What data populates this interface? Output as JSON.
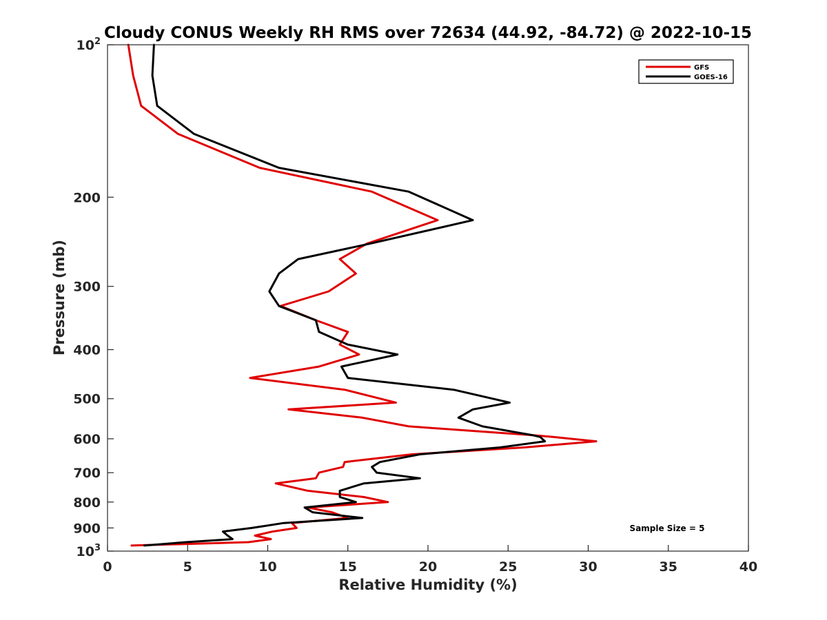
{
  "chart_data": {
    "type": "line",
    "title": "Cloudy CONUS Weekly RH RMS over 72634 (44.92, -84.72) @ 2022-10-15",
    "xlabel": "Relative Humidity (%)",
    "ylabel": "Pressure (mb)",
    "xlim": [
      0,
      40
    ],
    "ylim": [
      100,
      1000
    ],
    "y_scale": "log",
    "y_reversed": true,
    "xticks": [
      0,
      5,
      10,
      15,
      20,
      25,
      30,
      35,
      40
    ],
    "xtick_labels": [
      "0",
      "5",
      "10",
      "15",
      "20",
      "25",
      "30",
      "35",
      "40"
    ],
    "yticks": [
      100,
      200,
      300,
      400,
      500,
      600,
      700,
      800,
      900,
      1000
    ],
    "ytick_labels": [
      {
        "base": "10",
        "exp": "2"
      },
      {
        "text": "200"
      },
      {
        "text": "300"
      },
      {
        "text": "400"
      },
      {
        "text": "500"
      },
      {
        "text": "600"
      },
      {
        "text": "700"
      },
      {
        "text": "800"
      },
      {
        "text": "900"
      },
      {
        "base": "10",
        "exp": "3"
      }
    ],
    "grid": false,
    "legend_position": "top-right",
    "annotation": "Sample Size = 5",
    "series": [
      {
        "name": "GFS",
        "color": "#e00000",
        "points": [
          [
            1.3,
            100
          ],
          [
            1.6,
            115
          ],
          [
            2.1,
            132
          ],
          [
            4.4,
            150
          ],
          [
            9.5,
            175
          ],
          [
            16.5,
            195
          ],
          [
            20.6,
            222
          ],
          [
            16.2,
            247
          ],
          [
            14.5,
            265
          ],
          [
            15.5,
            283
          ],
          [
            13.8,
            307
          ],
          [
            10.8,
            328
          ],
          [
            13.0,
            350
          ],
          [
            15.0,
            369
          ],
          [
            14.5,
            391
          ],
          [
            15.7,
            409
          ],
          [
            13.2,
            432
          ],
          [
            8.9,
            455
          ],
          [
            14.8,
            480
          ],
          [
            18.0,
            509
          ],
          [
            11.3,
            525
          ],
          [
            15.9,
            545
          ],
          [
            18.8,
            567
          ],
          [
            26.5,
            590
          ],
          [
            27.8,
            595
          ],
          [
            30.5,
            607
          ],
          [
            26.0,
            624
          ],
          [
            19.0,
            644
          ],
          [
            14.8,
            667
          ],
          [
            14.7,
            682
          ],
          [
            13.2,
            700
          ],
          [
            13.0,
            718
          ],
          [
            10.5,
            735
          ],
          [
            12.5,
            760
          ],
          [
            16.0,
            782
          ],
          [
            17.5,
            800
          ],
          [
            12.5,
            820
          ],
          [
            14.0,
            838
          ],
          [
            15.0,
            860
          ],
          [
            11.5,
            880
          ],
          [
            11.8,
            900
          ],
          [
            10.3,
            915
          ],
          [
            9.2,
            932
          ],
          [
            10.2,
            947
          ],
          [
            8.8,
            960
          ],
          [
            1.5,
            975
          ]
        ]
      },
      {
        "name": "GOES-16",
        "color": "#000000",
        "points": [
          [
            2.9,
            100
          ],
          [
            2.8,
            115
          ],
          [
            3.1,
            132
          ],
          [
            5.4,
            150
          ],
          [
            10.7,
            175
          ],
          [
            18.8,
            195
          ],
          [
            22.8,
            222
          ],
          [
            16.4,
            247
          ],
          [
            11.9,
            265
          ],
          [
            10.7,
            283
          ],
          [
            10.1,
            307
          ],
          [
            10.7,
            328
          ],
          [
            13.0,
            350
          ],
          [
            13.2,
            369
          ],
          [
            15.0,
            391
          ],
          [
            18.1,
            409
          ],
          [
            14.6,
            432
          ],
          [
            15.0,
            455
          ],
          [
            21.6,
            480
          ],
          [
            25.1,
            509
          ],
          [
            22.8,
            525
          ],
          [
            21.9,
            545
          ],
          [
            23.4,
            567
          ],
          [
            26.5,
            590
          ],
          [
            27.0,
            595
          ],
          [
            27.3,
            607
          ],
          [
            24.5,
            624
          ],
          [
            19.5,
            644
          ],
          [
            17.0,
            667
          ],
          [
            16.5,
            682
          ],
          [
            16.8,
            700
          ],
          [
            19.5,
            718
          ],
          [
            16.0,
            735
          ],
          [
            14.5,
            760
          ],
          [
            14.5,
            782
          ],
          [
            15.5,
            800
          ],
          [
            12.3,
            820
          ],
          [
            12.8,
            838
          ],
          [
            15.9,
            860
          ],
          [
            11.0,
            880
          ],
          [
            9.0,
            900
          ],
          [
            7.2,
            915
          ],
          [
            7.5,
            932
          ],
          [
            7.8,
            947
          ],
          [
            4.9,
            960
          ],
          [
            2.3,
            975
          ]
        ]
      }
    ]
  }
}
